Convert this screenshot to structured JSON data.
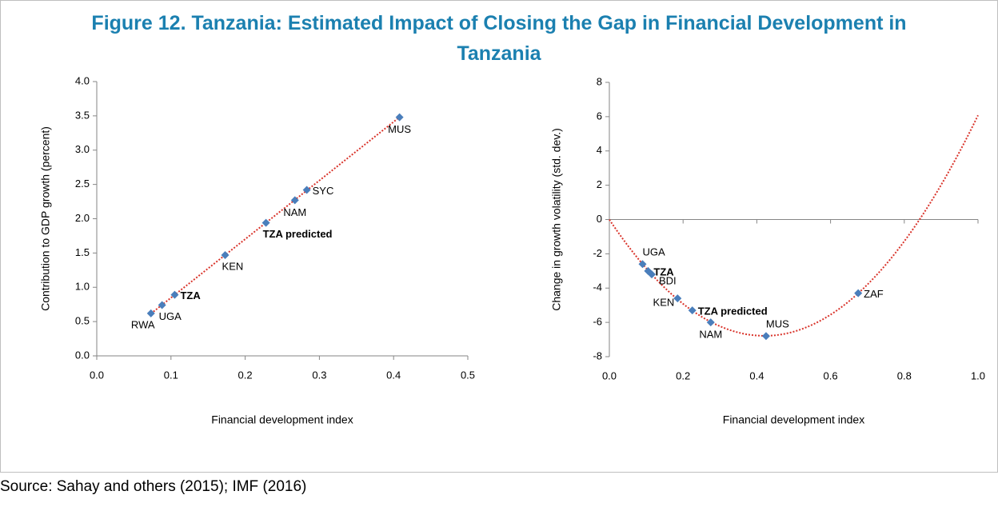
{
  "title": "Figure 12. Tanzania: Estimated Impact of Closing the Gap in Financial Development in Tanzania",
  "chart_data": [
    {
      "type": "scatter",
      "x_label": "Financial development index",
      "y_label": "Contribution to GDP growth (percent)",
      "color": "#4a7ebb",
      "x": [
        0.073,
        0.088,
        0.105,
        0.173,
        0.228,
        0.267,
        0.283,
        0.408
      ],
      "values": [
        0.62,
        0.74,
        0.89,
        1.47,
        1.94,
        2.27,
        2.42,
        3.48
      ],
      "labels": [
        "RWA",
        "UGA",
        "TZA",
        "KEN",
        "TZA predicted",
        "NAM",
        "SYC",
        "MUS"
      ],
      "label_position": [
        "below-left",
        "below-right",
        "right",
        "below-right",
        "below-right",
        "below",
        "right",
        "below"
      ],
      "bold": [
        false,
        false,
        true,
        false,
        true,
        false,
        false,
        false
      ],
      "trendline": {
        "order": 1,
        "color": "#d9342b",
        "extend": false
      },
      "xlim": [
        0,
        0.5
      ],
      "xticks": [
        {
          "value": 0,
          "label": "0.0"
        },
        0.1,
        0.2,
        0.3,
        0.4,
        0.5
      ],
      "ylim": [
        0,
        4
      ],
      "yticks": [
        {
          "value": 0,
          "label": "0.0"
        },
        0.5,
        {
          "value": 1,
          "label": "1.0"
        },
        1.5,
        {
          "value": 2,
          "label": "2.0"
        },
        2.5,
        {
          "value": 3,
          "label": "3.0"
        },
        3.5,
        {
          "value": 4,
          "label": "4.0"
        }
      ]
    },
    {
      "type": "scatter",
      "x_label": "Financial development index",
      "y_label": "Change in growth volatility (std. dev.)",
      "color": "#4a7ebb",
      "x": [
        0.09,
        0.105,
        0.115,
        0.185,
        0.225,
        0.275,
        0.425,
        0.675
      ],
      "values": [
        -2.6,
        -3.0,
        -3.2,
        -4.6,
        -5.3,
        -6.0,
        -6.8,
        -4.3
      ],
      "labels": [
        "UGA",
        "TZA",
        "BDI",
        "KEN",
        "TZA predicted",
        "NAM",
        "MUS",
        "ZAF"
      ],
      "label_position": [
        "above-right",
        "right",
        "right-below",
        "left",
        "right",
        "below",
        "above-right",
        "right"
      ],
      "bold": [
        false,
        true,
        false,
        false,
        true,
        false,
        false,
        false
      ],
      "trendline": {
        "order": 2,
        "color": "#d9342b",
        "extend": true
      },
      "xaxis_cross": 0,
      "xlim": [
        0,
        1
      ],
      "xticks": [
        {
          "value": 0,
          "label": "0.0"
        },
        0.2,
        0.4,
        0.6,
        0.8,
        {
          "value": 1,
          "label": "1.0"
        }
      ],
      "ylim": [
        -8,
        8
      ],
      "yticks": [
        -8,
        -6,
        -4,
        -2,
        0,
        2,
        4,
        6,
        8
      ]
    }
  ],
  "source": "Source: Sahay and others (2015); IMF (2016)"
}
